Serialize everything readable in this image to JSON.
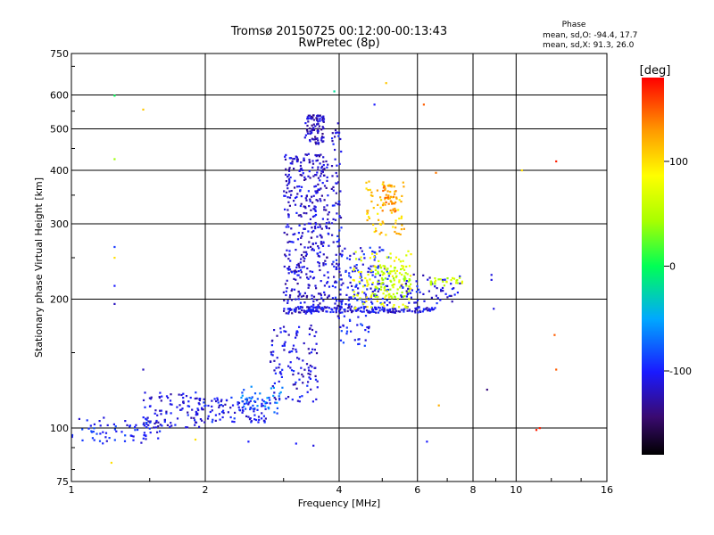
{
  "chart_data": {
    "type": "scatter",
    "title": "Tromsø 20150725 00:12:00-00:13:43",
    "subtitle": "RwPretec (8p)",
    "xlabel": "Frequency [MHz]",
    "ylabel": "Stationary phase Virtual Height [km]",
    "x_scale": "log",
    "y_scale": "log",
    "xlim": [
      1,
      16
    ],
    "ylim": [
      75,
      750
    ],
    "x_ticks": [
      1,
      2,
      4,
      6,
      8,
      10,
      16
    ],
    "x_tick_labels": [
      "1",
      "2",
      "4",
      "6",
      "8",
      "10",
      "16"
    ],
    "y_ticks": [
      75,
      100,
      200,
      300,
      400,
      500,
      600,
      750
    ],
    "y_tick_labels": [
      "75",
      "100",
      "200",
      "300",
      "400",
      "500",
      "600",
      "750"
    ],
    "grid": true,
    "phase_info": {
      "title": "Phase",
      "o_line": "mean, sd,O: -94.4, 17.7",
      "x_line": "mean, sd,X:  91.3, 26.0"
    },
    "colorbar": {
      "label": "[deg]",
      "range": [
        -180,
        180
      ],
      "ticks": [
        100,
        0,
        -100
      ],
      "tick_labels": [
        "100",
        "0",
        "-100"
      ]
    },
    "clusters": [
      {
        "f": [
          1.0,
          1.6
        ],
        "h": [
          92,
          106
        ],
        "phase": -100,
        "n": 70
      },
      {
        "f": [
          1.45,
          1.95
        ],
        "h": [
          100,
          122
        ],
        "phase": -110,
        "n": 90
      },
      {
        "f": [
          1.9,
          2.8
        ],
        "h": [
          103,
          118
        ],
        "phase": -105,
        "n": 110
      },
      {
        "f": [
          2.4,
          3.0
        ],
        "h": [
          108,
          125
        ],
        "phase": -70,
        "n": 40
      },
      {
        "f": [
          2.8,
          3.6
        ],
        "h": [
          115,
          175
        ],
        "phase": -110,
        "n": 120
      },
      {
        "f": [
          3.0,
          3.8
        ],
        "h": [
          185,
          440
        ],
        "phase": -115,
        "n": 420
      },
      {
        "f": [
          3.35,
          3.7
        ],
        "h": [
          460,
          540
        ],
        "phase": -120,
        "n": 90
      },
      {
        "f": [
          3.85,
          4.05
        ],
        "h": [
          180,
          520
        ],
        "phase": -110,
        "n": 90
      },
      {
        "f": [
          3.0,
          6.6
        ],
        "h": [
          186,
          192
        ],
        "phase": -110,
        "n": 180
      },
      {
        "f": [
          4.0,
          5.2
        ],
        "h": [
          190,
          265
        ],
        "phase": -100,
        "n": 140
      },
      {
        "f": [
          4.3,
          5.8
        ],
        "h": [
          190,
          260
        ],
        "phase": 80,
        "n": 100
      },
      {
        "f": [
          4.8,
          5.8
        ],
        "h": [
          200,
          240
        ],
        "phase": 50,
        "n": 80
      },
      {
        "f": [
          4.6,
          5.6
        ],
        "h": [
          280,
          380
        ],
        "phase": 110,
        "n": 70
      },
      {
        "f": [
          5.0,
          5.4
        ],
        "h": [
          320,
          370
        ],
        "phase": 130,
        "n": 40
      },
      {
        "f": [
          5.5,
          7.5
        ],
        "h": [
          195,
          230
        ],
        "phase": -110,
        "n": 60
      },
      {
        "f": [
          6.4,
          7.6
        ],
        "h": [
          215,
          225
        ],
        "phase": 60,
        "n": 25
      },
      {
        "f": [
          4.0,
          4.7
        ],
        "h": [
          155,
          185
        ],
        "phase": -100,
        "n": 30
      }
    ],
    "outliers": [
      {
        "f": 1.25,
        "h": 598,
        "phase": 0
      },
      {
        "f": 1.25,
        "h": 425,
        "phase": 40
      },
      {
        "f": 1.25,
        "h": 265,
        "phase": -90
      },
      {
        "f": 1.25,
        "h": 250,
        "phase": 100
      },
      {
        "f": 1.25,
        "h": 215,
        "phase": -100
      },
      {
        "f": 1.25,
        "h": 195,
        "phase": -120
      },
      {
        "f": 1.45,
        "h": 555,
        "phase": 110
      },
      {
        "f": 1.23,
        "h": 83,
        "phase": 100
      },
      {
        "f": 1.45,
        "h": 137,
        "phase": -120
      },
      {
        "f": 3.9,
        "h": 612,
        "phase": -20
      },
      {
        "f": 5.1,
        "h": 640,
        "phase": 110
      },
      {
        "f": 4.8,
        "h": 570,
        "phase": -100
      },
      {
        "f": 6.2,
        "h": 570,
        "phase": 150
      },
      {
        "f": 6.6,
        "h": 395,
        "phase": 140
      },
      {
        "f": 8.8,
        "h": 228,
        "phase": -110
      },
      {
        "f": 8.8,
        "h": 222,
        "phase": -110
      },
      {
        "f": 8.9,
        "h": 190,
        "phase": -110
      },
      {
        "f": 8.6,
        "h": 123,
        "phase": -140
      },
      {
        "f": 11.1,
        "h": 99,
        "phase": 170
      },
      {
        "f": 11.3,
        "h": 100,
        "phase": 170
      },
      {
        "f": 12.3,
        "h": 420,
        "phase": 170
      },
      {
        "f": 12.2,
        "h": 165,
        "phase": 150
      },
      {
        "f": 12.3,
        "h": 137,
        "phase": 150
      },
      {
        "f": 10.3,
        "h": 400,
        "phase": 100
      },
      {
        "f": 6.7,
        "h": 113,
        "phase": 120
      },
      {
        "f": 6.3,
        "h": 93,
        "phase": -100
      },
      {
        "f": 3.2,
        "h": 92,
        "phase": -100
      },
      {
        "f": 3.5,
        "h": 91,
        "phase": -110
      },
      {
        "f": 2.5,
        "h": 93,
        "phase": -100
      },
      {
        "f": 1.9,
        "h": 94,
        "phase": 100
      }
    ]
  }
}
